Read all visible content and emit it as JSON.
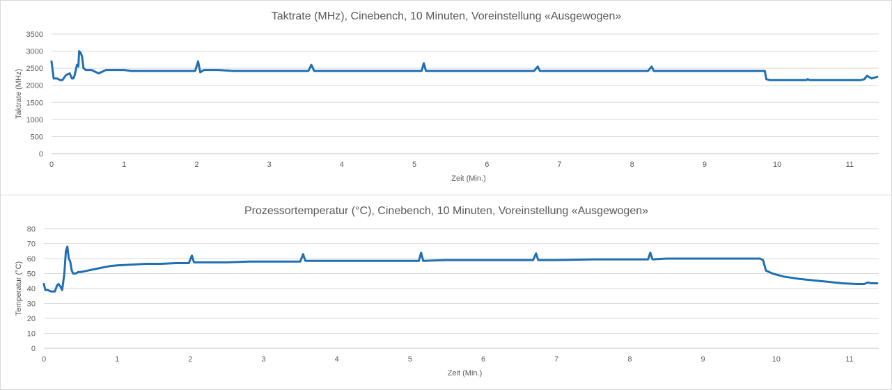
{
  "chart_data": [
    {
      "type": "line",
      "title": "Taktrate (MHz), Cinebench, 10 Minuten, Voreinstellung «Ausgewogen»",
      "xlabel": "Zeit (Min.)",
      "ylabel": "Taktrate (MHz)",
      "xlim": [
        0,
        11.4
      ],
      "ylim": [
        0,
        3500
      ],
      "xticks": [
        "0",
        "1",
        "2",
        "3",
        "4",
        "5",
        "6",
        "7",
        "8",
        "9",
        "10",
        "11"
      ],
      "yticks": [
        "0",
        "500",
        "1000",
        "1500",
        "2000",
        "2500",
        "3000",
        "3500"
      ],
      "grid": true,
      "color": "#1f6fb2",
      "series": [
        {
          "x": [
            0,
            0.03,
            0.08,
            0.12,
            0.15,
            0.2,
            0.25,
            0.28,
            0.3,
            0.32,
            0.35,
            0.37,
            0.38,
            0.4,
            0.42,
            0.44,
            0.47,
            0.5,
            0.55,
            0.6,
            0.65,
            0.7,
            0.75,
            0.8,
            0.9,
            1.0,
            1.1,
            1.2,
            1.3,
            1.5,
            1.7,
            1.9,
            1.98,
            2.02,
            2.05,
            2.1,
            2.3,
            2.5,
            2.8,
            3.2,
            3.5,
            3.54,
            3.58,
            3.62,
            3.8,
            4.2,
            4.6,
            5.0,
            5.1,
            5.13,
            5.16,
            5.2,
            5.5,
            6.0,
            6.5,
            6.65,
            6.7,
            6.73,
            6.77,
            7.0,
            7.5,
            8.0,
            8.22,
            8.27,
            8.3,
            8.5,
            8.8,
            9.2,
            9.5,
            9.7,
            9.78,
            9.83,
            9.85,
            9.9,
            10.0,
            10.2,
            10.4,
            10.42,
            10.45,
            10.6,
            10.8,
            11.0,
            11.15,
            11.2,
            11.24,
            11.3,
            11.38
          ],
          "y": [
            2700,
            2200,
            2200,
            2150,
            2150,
            2300,
            2350,
            2200,
            2200,
            2300,
            2600,
            2550,
            3000,
            2950,
            2850,
            2500,
            2450,
            2450,
            2450,
            2400,
            2350,
            2400,
            2450,
            2450,
            2450,
            2450,
            2420,
            2420,
            2420,
            2420,
            2420,
            2420,
            2420,
            2700,
            2380,
            2450,
            2450,
            2420,
            2420,
            2420,
            2420,
            2420,
            2600,
            2420,
            2420,
            2420,
            2420,
            2420,
            2420,
            2650,
            2420,
            2420,
            2420,
            2420,
            2420,
            2420,
            2550,
            2420,
            2420,
            2420,
            2420,
            2420,
            2420,
            2550,
            2420,
            2420,
            2420,
            2420,
            2420,
            2420,
            2420,
            2420,
            2180,
            2150,
            2150,
            2150,
            2150,
            2180,
            2150,
            2150,
            2150,
            2150,
            2150,
            2180,
            2280,
            2200,
            2250
          ]
        }
      ]
    },
    {
      "type": "line",
      "title": "Prozessortemperatur (°C), Cinebench, 10 Minuten, Voreinstellung «Ausgewogen»",
      "xlabel": "Zeit (Min.)",
      "ylabel": "Temperatur (°C)",
      "xlim": [
        0,
        11.4
      ],
      "ylim": [
        0,
        80
      ],
      "xticks": [
        "0",
        "1",
        "2",
        "3",
        "4",
        "5",
        "6",
        "7",
        "8",
        "9",
        "10",
        "11"
      ],
      "yticks": [
        "0",
        "10",
        "20",
        "30",
        "40",
        "50",
        "60",
        "70",
        "80"
      ],
      "grid": true,
      "color": "#1f6fb2",
      "series": [
        {
          "x": [
            0,
            0.02,
            0.05,
            0.1,
            0.15,
            0.18,
            0.2,
            0.23,
            0.25,
            0.28,
            0.3,
            0.32,
            0.34,
            0.36,
            0.38,
            0.4,
            0.43,
            0.47,
            0.5,
            0.6,
            0.7,
            0.8,
            0.9,
            1.0,
            1.2,
            1.4,
            1.6,
            1.8,
            1.98,
            2.02,
            2.05,
            2.2,
            2.5,
            2.8,
            3.0,
            3.5,
            3.54,
            3.57,
            3.6,
            4.0,
            4.5,
            5.0,
            5.12,
            5.15,
            5.18,
            5.5,
            6.0,
            6.5,
            6.68,
            6.72,
            6.75,
            7.0,
            7.5,
            8.0,
            8.25,
            8.28,
            8.31,
            8.5,
            9.0,
            9.5,
            9.78,
            9.82,
            9.86,
            9.95,
            10.1,
            10.3,
            10.5,
            10.7,
            10.9,
            11.1,
            11.2,
            11.25,
            11.3,
            11.38
          ],
          "y": [
            43,
            39,
            39,
            38,
            38,
            42,
            43,
            41,
            39,
            50,
            65,
            68,
            60,
            58,
            52,
            50,
            50,
            51,
            51,
            52,
            53,
            54,
            55,
            55.5,
            56,
            56.5,
            56.5,
            57,
            57,
            62,
            57.5,
            57.5,
            57.5,
            58,
            58,
            58,
            63,
            58.5,
            58.5,
            58.5,
            58.5,
            58.5,
            58.5,
            64,
            58.5,
            59,
            59,
            59,
            59,
            63.5,
            59,
            59,
            59.5,
            59.5,
            59.5,
            64,
            59.5,
            60,
            60,
            60,
            60,
            59,
            52,
            50,
            48,
            46.5,
            45.5,
            44.5,
            43.5,
            43,
            43,
            44,
            43.5,
            43.5
          ]
        }
      ]
    }
  ]
}
